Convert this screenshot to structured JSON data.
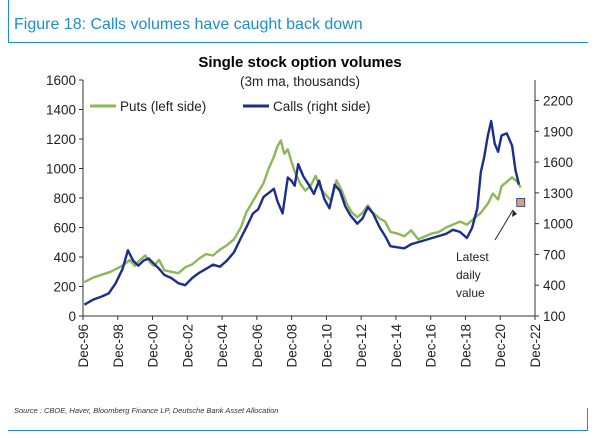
{
  "header": {
    "figure_title": "Figure 18: Calls volumes have caught back down",
    "accent_color": "#1a8fd1"
  },
  "source_note": "Source : CBOE, Haver, Bloomberg Finance LP, Deutsche Bank Asset Allocation",
  "chart_data": {
    "type": "line",
    "title": "Single stock option volumes",
    "subtitle": "(3m ma, thousands)",
    "legend_position": "top-left",
    "grid": false,
    "x_tick_labels": [
      "Dec-96",
      "Dec-98",
      "Dec-00",
      "Dec-02",
      "Dec-04",
      "Dec-06",
      "Dec-08",
      "Dec-10",
      "Dec-12",
      "Dec-14",
      "Dec-16",
      "Dec-18",
      "Dec-20",
      "Dec-22"
    ],
    "x_range": [
      1996.92,
      2022.92
    ],
    "y_left": {
      "range": [
        0,
        1600
      ],
      "ticks": [
        0,
        200,
        400,
        600,
        800,
        1000,
        1200,
        1400,
        1600
      ]
    },
    "y_right": {
      "range": [
        100,
        2400
      ],
      "ticks": [
        100,
        400,
        700,
        1000,
        1300,
        1600,
        1900,
        2200
      ]
    },
    "series": [
      {
        "name": "Puts (left side)",
        "axis": "left",
        "color": "#8db85a",
        "points": [
          [
            1997.0,
            230
          ],
          [
            1997.5,
            260
          ],
          [
            1998.0,
            280
          ],
          [
            1998.5,
            300
          ],
          [
            1999.0,
            330
          ],
          [
            1999.3,
            350
          ],
          [
            1999.6,
            380
          ],
          [
            1999.9,
            340
          ],
          [
            2000.2,
            380
          ],
          [
            2000.5,
            410
          ],
          [
            2000.8,
            360
          ],
          [
            2001.0,
            340
          ],
          [
            2001.3,
            380
          ],
          [
            2001.6,
            310
          ],
          [
            2002.0,
            300
          ],
          [
            2002.4,
            290
          ],
          [
            2002.8,
            330
          ],
          [
            2003.2,
            350
          ],
          [
            2003.6,
            390
          ],
          [
            2004.0,
            420
          ],
          [
            2004.4,
            410
          ],
          [
            2004.8,
            450
          ],
          [
            2005.2,
            480
          ],
          [
            2005.6,
            520
          ],
          [
            2006.0,
            600
          ],
          [
            2006.3,
            700
          ],
          [
            2006.7,
            780
          ],
          [
            2007.0,
            840
          ],
          [
            2007.3,
            900
          ],
          [
            2007.6,
            1000
          ],
          [
            2007.9,
            1080
          ],
          [
            2008.1,
            1150
          ],
          [
            2008.3,
            1190
          ],
          [
            2008.5,
            1100
          ],
          [
            2008.7,
            1130
          ],
          [
            2008.9,
            1050
          ],
          [
            2009.1,
            980
          ],
          [
            2009.4,
            900
          ],
          [
            2009.7,
            850
          ],
          [
            2010.0,
            880
          ],
          [
            2010.3,
            950
          ],
          [
            2010.6,
            860
          ],
          [
            2010.9,
            820
          ],
          [
            2011.2,
            780
          ],
          [
            2011.5,
            920
          ],
          [
            2011.8,
            850
          ],
          [
            2012.1,
            760
          ],
          [
            2012.4,
            700
          ],
          [
            2012.7,
            670
          ],
          [
            2013.0,
            700
          ],
          [
            2013.3,
            750
          ],
          [
            2013.6,
            700
          ],
          [
            2014.0,
            660
          ],
          [
            2014.3,
            640
          ],
          [
            2014.6,
            570
          ],
          [
            2015.0,
            560
          ],
          [
            2015.4,
            540
          ],
          [
            2015.8,
            580
          ],
          [
            2016.2,
            520
          ],
          [
            2016.6,
            540
          ],
          [
            2017.0,
            560
          ],
          [
            2017.4,
            570
          ],
          [
            2017.8,
            600
          ],
          [
            2018.2,
            620
          ],
          [
            2018.6,
            640
          ],
          [
            2019.0,
            620
          ],
          [
            2019.4,
            660
          ],
          [
            2019.8,
            700
          ],
          [
            2020.2,
            760
          ],
          [
            2020.5,
            830
          ],
          [
            2020.8,
            790
          ],
          [
            2021.0,
            880
          ],
          [
            2021.3,
            910
          ],
          [
            2021.6,
            940
          ],
          [
            2021.9,
            910
          ],
          [
            2022.1,
            870
          ]
        ]
      },
      {
        "name": "Calls (right side)",
        "axis": "right",
        "color": "#1c2e8c",
        "points": [
          [
            1997.0,
            210
          ],
          [
            1997.5,
            260
          ],
          [
            1998.0,
            290
          ],
          [
            1998.4,
            320
          ],
          [
            1998.8,
            420
          ],
          [
            1999.2,
            560
          ],
          [
            1999.5,
            740
          ],
          [
            1999.8,
            640
          ],
          [
            2000.1,
            590
          ],
          [
            2000.4,
            640
          ],
          [
            2000.7,
            660
          ],
          [
            2001.0,
            610
          ],
          [
            2001.3,
            560
          ],
          [
            2001.6,
            500
          ],
          [
            2002.0,
            470
          ],
          [
            2002.4,
            420
          ],
          [
            2002.8,
            400
          ],
          [
            2003.2,
            470
          ],
          [
            2003.6,
            520
          ],
          [
            2004.0,
            560
          ],
          [
            2004.4,
            600
          ],
          [
            2004.8,
            580
          ],
          [
            2005.2,
            640
          ],
          [
            2005.6,
            720
          ],
          [
            2006.0,
            860
          ],
          [
            2006.3,
            960
          ],
          [
            2006.7,
            1100
          ],
          [
            2007.0,
            1140
          ],
          [
            2007.3,
            1260
          ],
          [
            2007.6,
            1300
          ],
          [
            2007.9,
            1340
          ],
          [
            2008.1,
            1220
          ],
          [
            2008.4,
            1100
          ],
          [
            2008.7,
            1450
          ],
          [
            2008.9,
            1420
          ],
          [
            2009.1,
            1370
          ],
          [
            2009.3,
            1580
          ],
          [
            2009.6,
            1460
          ],
          [
            2009.9,
            1380
          ],
          [
            2010.2,
            1290
          ],
          [
            2010.5,
            1420
          ],
          [
            2010.8,
            1240
          ],
          [
            2011.1,
            1150
          ],
          [
            2011.4,
            1380
          ],
          [
            2011.7,
            1320
          ],
          [
            2012.0,
            1170
          ],
          [
            2012.3,
            1080
          ],
          [
            2012.7,
            1000
          ],
          [
            2013.0,
            1050
          ],
          [
            2013.3,
            1160
          ],
          [
            2013.6,
            1100
          ],
          [
            2014.0,
            960
          ],
          [
            2014.3,
            880
          ],
          [
            2014.6,
            780
          ],
          [
            2015.0,
            770
          ],
          [
            2015.4,
            760
          ],
          [
            2015.8,
            800
          ],
          [
            2016.2,
            820
          ],
          [
            2016.6,
            840
          ],
          [
            2017.0,
            860
          ],
          [
            2017.4,
            880
          ],
          [
            2017.8,
            900
          ],
          [
            2018.2,
            940
          ],
          [
            2018.6,
            920
          ],
          [
            2019.0,
            860
          ],
          [
            2019.3,
            960
          ],
          [
            2019.6,
            1150
          ],
          [
            2019.8,
            1500
          ],
          [
            2020.0,
            1650
          ],
          [
            2020.2,
            1850
          ],
          [
            2020.4,
            2000
          ],
          [
            2020.6,
            1780
          ],
          [
            2020.8,
            1700
          ],
          [
            2021.0,
            1860
          ],
          [
            2021.3,
            1880
          ],
          [
            2021.6,
            1760
          ],
          [
            2021.8,
            1520
          ],
          [
            2022.0,
            1380
          ]
        ]
      }
    ],
    "latest_daily_value": {
      "left_value": 770,
      "color": "#d9a06e"
    },
    "annotation": {
      "lines": [
        "Latest",
        "daily",
        "value"
      ],
      "arrow_to": [
        2022.0,
        800
      ]
    }
  }
}
